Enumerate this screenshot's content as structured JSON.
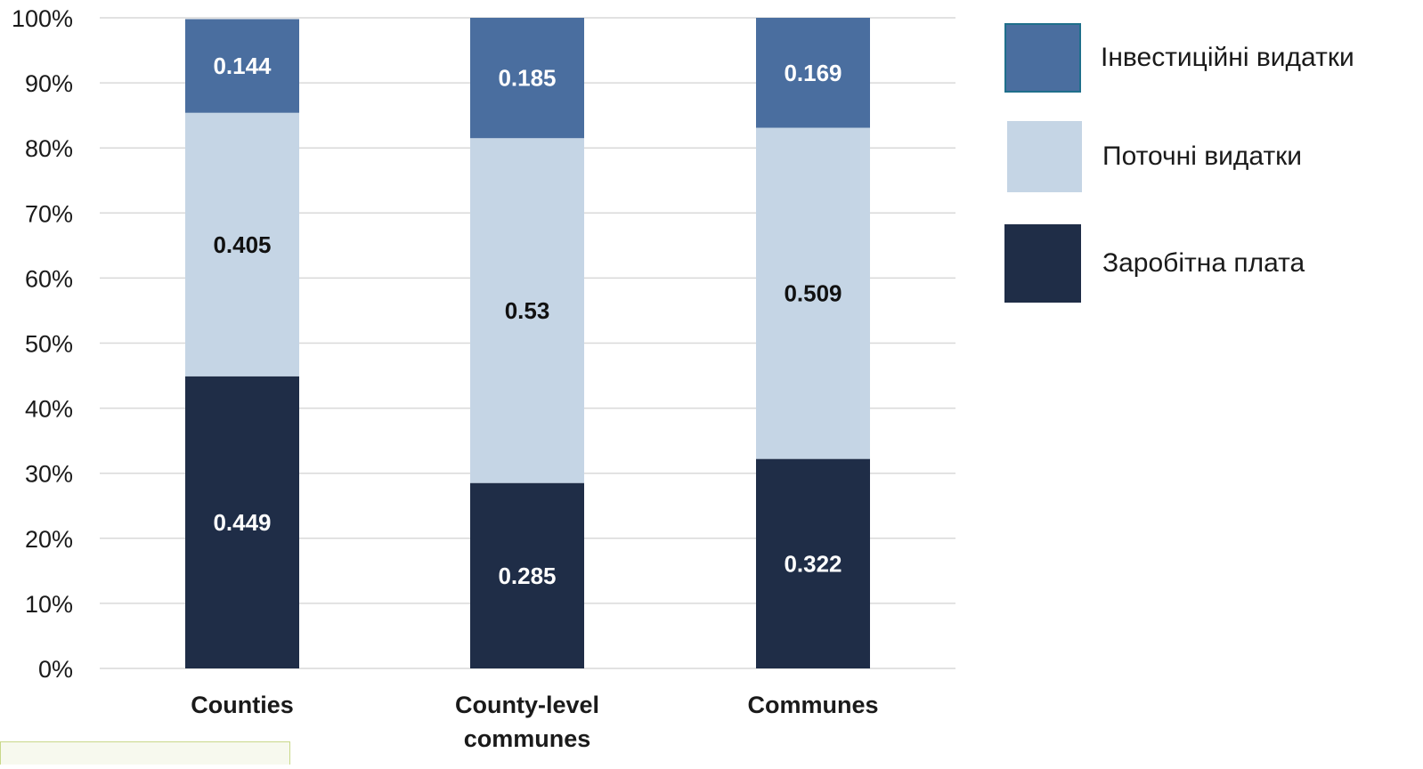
{
  "chart_data": {
    "type": "bar",
    "stacked": true,
    "categories": [
      "Counties",
      "County-level communes",
      "Communes"
    ],
    "category_lines": [
      [
        "Counties"
      ],
      [
        "County-level",
        "communes"
      ],
      [
        "Communes"
      ]
    ],
    "series": [
      {
        "name": "Заробітна плата",
        "values": [
          0.449,
          0.285,
          0.322
        ],
        "color": "#1f2d47",
        "label_color": "#ffffff"
      },
      {
        "name": "Поточні видатки",
        "values": [
          0.405,
          0.53,
          0.509
        ],
        "color": "#c5d5e5",
        "label_color": "#111111"
      },
      {
        "name": "Інвестиційні видатки",
        "values": [
          0.144,
          0.185,
          0.169
        ],
        "color": "#4a6e9f",
        "label_color": "#ffffff"
      }
    ],
    "data_labels": [
      [
        "0.449",
        "0.285",
        "0.322"
      ],
      [
        "0.405",
        "0.53",
        "0.509"
      ],
      [
        "0.144",
        "0.185",
        "0.169"
      ]
    ],
    "y_ticks": [
      "0%",
      "10%",
      "20%",
      "30%",
      "40%",
      "50%",
      "60%",
      "70%",
      "80%",
      "90%",
      "100%"
    ],
    "ylim": [
      0,
      1
    ],
    "grid": true,
    "legend_position": "right",
    "legend_order": [
      "Інвестиційні видатки",
      "Поточні видатки",
      "Заробітна плата"
    ],
    "title": "",
    "xlabel": "",
    "ylabel": ""
  },
  "colors": {
    "grid": "#d9d9d9",
    "axis_text": "#1a1a1a",
    "legend_invest_border": "#1f6f8b"
  }
}
